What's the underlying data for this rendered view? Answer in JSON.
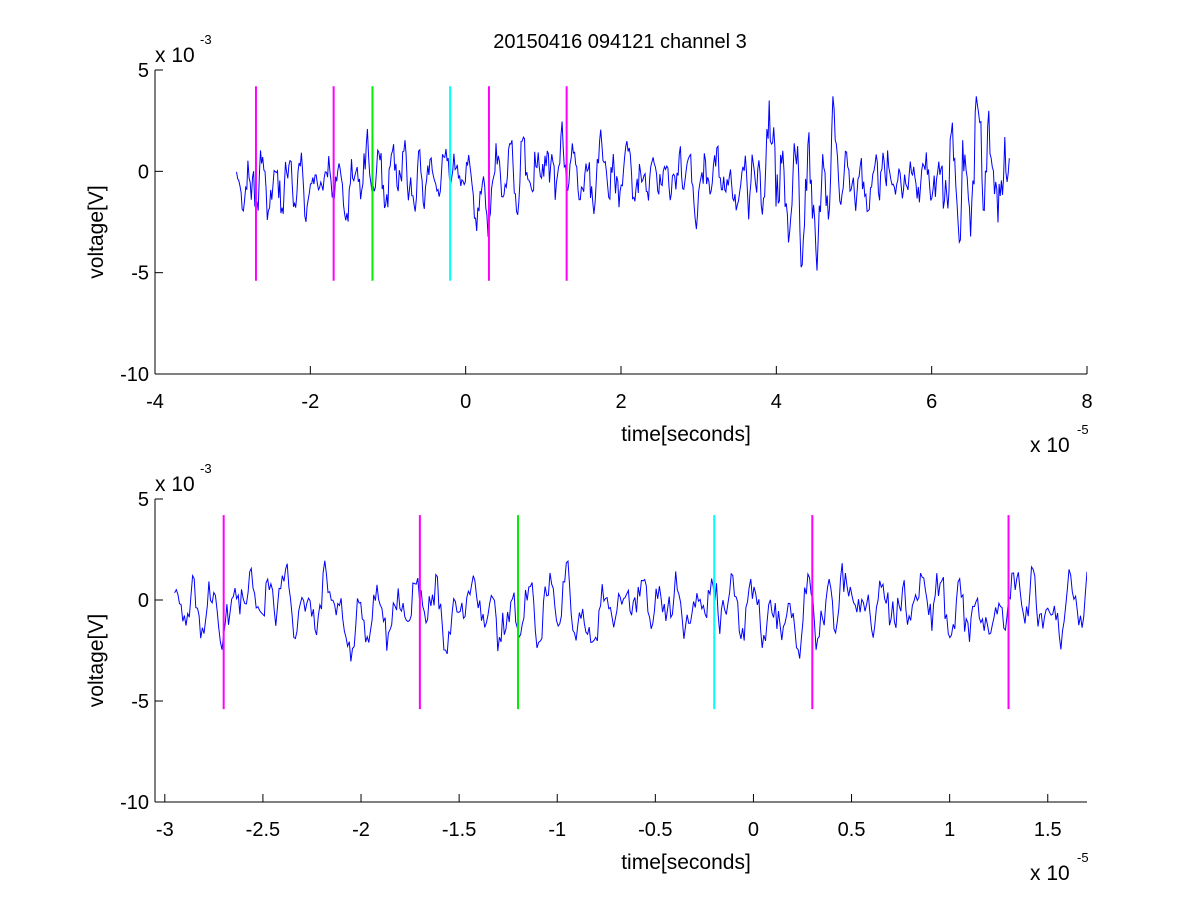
{
  "figure": {
    "title": "20150416 094121 channel 3"
  },
  "chart_data": [
    {
      "type": "line",
      "xlabel": "time[seconds]",
      "ylabel": "voltage[V]",
      "x_exponent_label": "x 10",
      "x_exponent": "-5",
      "y_exponent_label": "x 10",
      "y_exponent": "-3",
      "xlim": [
        -4,
        8
      ],
      "ylim": [
        -10,
        5
      ],
      "x_ticks": [
        -4,
        -2,
        0,
        2,
        4,
        6,
        8
      ],
      "x_tick_labels": [
        "-4",
        "-2",
        "0",
        "2",
        "4",
        "6",
        "8"
      ],
      "y_ticks": [
        -10,
        -5,
        0,
        5
      ],
      "y_tick_labels": [
        "-10",
        "-5",
        "0",
        "5"
      ],
      "grid": false,
      "series": [
        {
          "color": "#0000ff",
          "x_start": -2.95,
          "x_end": 7.0,
          "samples": 680,
          "seed": 11
        }
      ],
      "markers": [
        {
          "x": -2.7,
          "y_range": [
            -5.4,
            4.2
          ],
          "color": "#ff00ff"
        },
        {
          "x": -1.7,
          "y_range": [
            -5.4,
            4.2
          ],
          "color": "#ff00ff"
        },
        {
          "x": -1.2,
          "y_range": [
            -5.4,
            4.2
          ],
          "color": "#00ee00"
        },
        {
          "x": -0.2,
          "y_range": [
            -5.4,
            4.2
          ],
          "color": "#00ffff"
        },
        {
          "x": 0.3,
          "y_range": [
            -5.4,
            4.2
          ],
          "color": "#ff00ff"
        },
        {
          "x": 1.3,
          "y_range": [
            -5.4,
            4.2
          ],
          "color": "#ff00ff"
        }
      ]
    },
    {
      "type": "line",
      "xlabel": "time[seconds]",
      "ylabel": "voltage[V]",
      "x_exponent_label": "x 10",
      "x_exponent": "-5",
      "y_exponent_label": "x 10",
      "y_exponent": "-3",
      "xlim": [
        -3.05,
        1.7
      ],
      "ylim": [
        -10,
        5
      ],
      "x_ticks": [
        -3,
        -2.5,
        -2,
        -1.5,
        -1,
        -0.5,
        0,
        0.5,
        1,
        1.5
      ],
      "x_tick_labels": [
        "-3",
        "-2.5",
        "-2",
        "-1.5",
        "-1",
        "-0.5",
        "0",
        "0.5",
        "1",
        "1.5"
      ],
      "y_ticks": [
        -10,
        -5,
        0,
        5
      ],
      "y_tick_labels": [
        "-10",
        "-5",
        "0",
        "5"
      ],
      "grid": false,
      "series": [
        {
          "color": "#0000ff",
          "x_start": -2.95,
          "x_end": 1.7,
          "samples": 560,
          "seed": 23
        }
      ],
      "markers": [
        {
          "x": -2.7,
          "y_range": [
            -5.4,
            4.2
          ],
          "color": "#ff00ff"
        },
        {
          "x": -1.7,
          "y_range": [
            -5.4,
            4.2
          ],
          "color": "#ff00ff"
        },
        {
          "x": -1.2,
          "y_range": [
            -5.4,
            4.2
          ],
          "color": "#00ee00"
        },
        {
          "x": -0.2,
          "y_range": [
            -5.4,
            4.2
          ],
          "color": "#00ffff"
        },
        {
          "x": 0.3,
          "y_range": [
            -5.4,
            4.2
          ],
          "color": "#ff00ff"
        },
        {
          "x": 1.3,
          "y_range": [
            -5.4,
            4.2
          ],
          "color": "#ff00ff"
        }
      ]
    }
  ]
}
